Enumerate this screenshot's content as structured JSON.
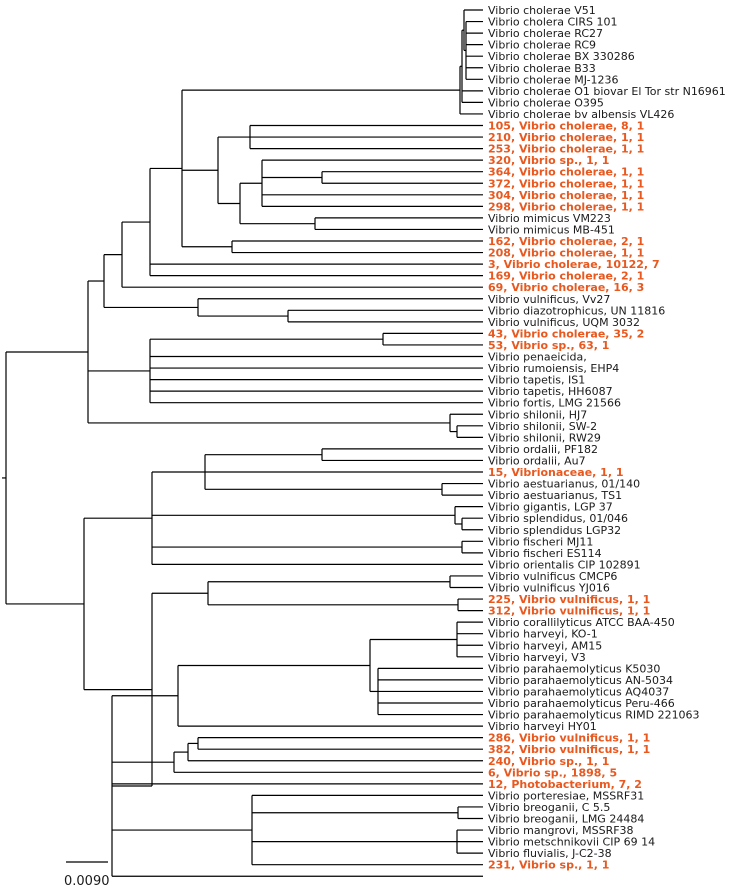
{
  "colors": {
    "highlight": "#e8581f",
    "normal": "#1a1a1a",
    "branch": "#000000"
  },
  "scale_bar": {
    "label": "0.0090"
  },
  "leaves": [
    {
      "label": "Vibrio cholerae V51",
      "highlight": false
    },
    {
      "label": "Vibrio cholera CIRS 101",
      "highlight": false
    },
    {
      "label": "Vibrio cholerae RC27",
      "highlight": false
    },
    {
      "label": "Vibrio cholerae RC9",
      "highlight": false
    },
    {
      "label": "Vibrio cholerae BX 330286",
      "highlight": false
    },
    {
      "label": "Vibrio cholerae B33",
      "highlight": false
    },
    {
      "label": "Vibrio cholerae MJ-1236",
      "highlight": false
    },
    {
      "label": "Vibrio cholerae O1 biovar El Tor str  N16961",
      "highlight": false
    },
    {
      "label": "Vibrio cholerae O395",
      "highlight": false
    },
    {
      "label": "Vibrio cholerae bv  albensis VL426",
      "highlight": false
    },
    {
      "label": "105, Vibrio cholerae, 8, 1",
      "highlight": true
    },
    {
      "label": "210, Vibrio cholerae, 1, 1",
      "highlight": true
    },
    {
      "label": "253, Vibrio cholerae, 1, 1",
      "highlight": true
    },
    {
      "label": "320, Vibrio sp., 1, 1",
      "highlight": true
    },
    {
      "label": "364, Vibrio cholerae, 1, 1",
      "highlight": true
    },
    {
      "label": "372, Vibrio cholerae, 1, 1",
      "highlight": true
    },
    {
      "label": "304, Vibrio cholerae, 1, 1",
      "highlight": true
    },
    {
      "label": "298, Vibrio cholerae, 1, 1",
      "highlight": true
    },
    {
      "label": "Vibrio mimicus VM223",
      "highlight": false
    },
    {
      "label": "Vibrio mimicus MB-451",
      "highlight": false
    },
    {
      "label": "162, Vibrio cholerae, 2, 1",
      "highlight": true
    },
    {
      "label": "208, Vibrio cholerae, 1, 1",
      "highlight": true
    },
    {
      "label": "3, Vibrio cholerae, 10122, 7",
      "highlight": true
    },
    {
      "label": "169, Vibrio cholerae, 2, 1",
      "highlight": true
    },
    {
      "label": "69, Vibrio cholerae, 16, 3",
      "highlight": true
    },
    {
      "label": "Vibrio vulnificus, Vv27",
      "highlight": false
    },
    {
      "label": "Vibrio diazotrophicus, UN 11816",
      "highlight": false
    },
    {
      "label": "Vibrio vulnificus, UQM 3032",
      "highlight": false
    },
    {
      "label": "43, Vibrio cholerae, 35, 2",
      "highlight": true
    },
    {
      "label": "53, Vibrio sp., 63, 1",
      "highlight": true
    },
    {
      "label": "Vibrio penaeicida,",
      "highlight": false
    },
    {
      "label": "Vibrio rumoiensis, EHP4",
      "highlight": false
    },
    {
      "label": "Vibrio tapetis, IS1",
      "highlight": false
    },
    {
      "label": "Vibrio tapetis, HH6087",
      "highlight": false
    },
    {
      "label": "Vibrio fortis, LMG 21566",
      "highlight": false
    },
    {
      "label": "Vibrio shilonii, HJ7",
      "highlight": false
    },
    {
      "label": "Vibrio shilonii, SW-2",
      "highlight": false
    },
    {
      "label": "Vibrio shilonii, RW29",
      "highlight": false
    },
    {
      "label": "Vibrio ordalii, PF182",
      "highlight": false
    },
    {
      "label": "Vibrio ordalii, Au7",
      "highlight": false
    },
    {
      "label": "15, Vibrionaceae, 1, 1",
      "highlight": true
    },
    {
      "label": "Vibrio aestuarianus, 01/140",
      "highlight": false
    },
    {
      "label": "Vibrio aestuarianus, TS1",
      "highlight": false
    },
    {
      "label": "Vibrio gigantis, LGP 37",
      "highlight": false
    },
    {
      "label": "Vibrio splendidus, 01/046",
      "highlight": false
    },
    {
      "label": "Vibrio splendidus LGP32",
      "highlight": false
    },
    {
      "label": "Vibrio fischeri MJ11",
      "highlight": false
    },
    {
      "label": "Vibrio fischeri ES114",
      "highlight": false
    },
    {
      "label": "Vibrio orientalis CIP 102891",
      "highlight": false
    },
    {
      "label": "Vibrio vulnificus CMCP6",
      "highlight": false
    },
    {
      "label": "Vibrio vulnificus YJ016",
      "highlight": false
    },
    {
      "label": "225, Vibrio vulnificus, 1, 1",
      "highlight": true
    },
    {
      "label": "312, Vibrio vulnificus, 1, 1",
      "highlight": true
    },
    {
      "label": "Vibrio corallilyticus ATCC BAA-450",
      "highlight": false
    },
    {
      "label": "Vibrio harveyi, KO-1",
      "highlight": false
    },
    {
      "label": "Vibrio harveyi, AM15",
      "highlight": false
    },
    {
      "label": "Vibrio harveyi, V3",
      "highlight": false
    },
    {
      "label": "Vibrio parahaemolyticus K5030",
      "highlight": false
    },
    {
      "label": "Vibrio parahaemolyticus AN-5034",
      "highlight": false
    },
    {
      "label": "Vibrio parahaemolyticus AQ4037",
      "highlight": false
    },
    {
      "label": "Vibrio parahaemolyticus Peru-466",
      "highlight": false
    },
    {
      "label": "Vibrio parahaemolyticus RIMD 221063",
      "highlight": false
    },
    {
      "label": "Vibrio harveyi HY01",
      "highlight": false
    },
    {
      "label": "286, Vibrio vulnificus, 1, 1",
      "highlight": true
    },
    {
      "label": "382, Vibrio vulnificus, 1, 1",
      "highlight": true
    },
    {
      "label": "240, Vibrio sp., 1, 1",
      "highlight": true
    },
    {
      "label": "6, Vibrio sp., 1898, 5",
      "highlight": true
    },
    {
      "label": "12, Photobacterium, 7, 2",
      "highlight": true
    },
    {
      "label": "Vibrio porteresiae, MSSRF31",
      "highlight": false
    },
    {
      "label": "Vibrio breoganii, C 5.5",
      "highlight": false
    },
    {
      "label": "Vibrio breoganii, LMG 24484",
      "highlight": false
    },
    {
      "label": "Vibrio mangrovi, MSSRF38",
      "highlight": false
    },
    {
      "label": "Vibrio metschnikovii CIP 69 14",
      "highlight": false
    },
    {
      "label": "Vibrio fluvialis, J-C2-38",
      "highlight": false
    },
    {
      "label": "231, Vibrio sp., 1, 1",
      "highlight": true
    }
  ]
}
